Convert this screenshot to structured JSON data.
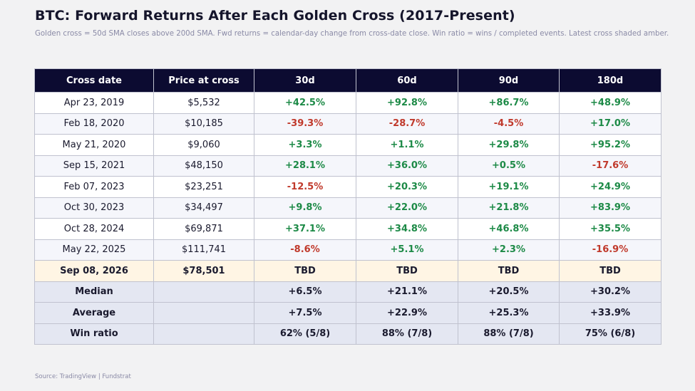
{
  "title": "BTC: Forward Returns After Each Golden Cross (2017-Present)",
  "subtitle": "Golden cross = 50d SMA closes above 200d SMA. Fwd returns = calendar-day change from cross-date close. Win ratio = wins / completed events. Latest cross shaded amber.",
  "source": "Source: TradingView | Fundstrat",
  "colors": {
    "header_bg": "#0c0b31",
    "positive": "#1d8a47",
    "negative": "#c0392b",
    "latest_row": "#fff5e4",
    "stat_row": "#e4e7f2"
  },
  "chart_data": {
    "type": "table",
    "columns": [
      "Cross date",
      "Price at cross",
      "30d",
      "60d",
      "90d",
      "180d"
    ],
    "rows": [
      [
        "Apr 23, 2019",
        "$5,532",
        "+42.5%",
        "+92.8%",
        "+86.7%",
        "+48.9%"
      ],
      [
        "Feb 18, 2020",
        "$10,185",
        "-39.3%",
        "-28.7%",
        "-4.5%",
        "+17.0%"
      ],
      [
        "May 21, 2020",
        "$9,060",
        "+3.3%",
        "+1.1%",
        "+29.8%",
        "+95.2%"
      ],
      [
        "Sep 15, 2021",
        "$48,150",
        "+28.1%",
        "+36.0%",
        "+0.5%",
        "-17.6%"
      ],
      [
        "Feb 07, 2023",
        "$23,251",
        "-12.5%",
        "+20.3%",
        "+19.1%",
        "+24.9%"
      ],
      [
        "Oct 30, 2023",
        "$34,497",
        "+9.8%",
        "+22.0%",
        "+21.8%",
        "+83.9%"
      ],
      [
        "Oct 28, 2024",
        "$69,871",
        "+37.1%",
        "+34.8%",
        "+46.8%",
        "+35.5%"
      ],
      [
        "May 22, 2025",
        "$111,741",
        "-8.6%",
        "+5.1%",
        "+2.3%",
        "-16.9%"
      ]
    ],
    "latest_row": [
      "Sep 08, 2026",
      "$78,501",
      "TBD",
      "TBD",
      "TBD",
      "TBD"
    ],
    "summary_rows": [
      [
        "Median",
        "",
        "+6.5%",
        "+21.1%",
        "+20.5%",
        "+30.2%"
      ],
      [
        "Average",
        "",
        "+7.5%",
        "+22.9%",
        "+25.3%",
        "+33.9%"
      ],
      [
        "Win ratio",
        "",
        "62% (5/8)",
        "88% (7/8)",
        "88% (7/8)",
        "75% (6/8)"
      ]
    ]
  }
}
